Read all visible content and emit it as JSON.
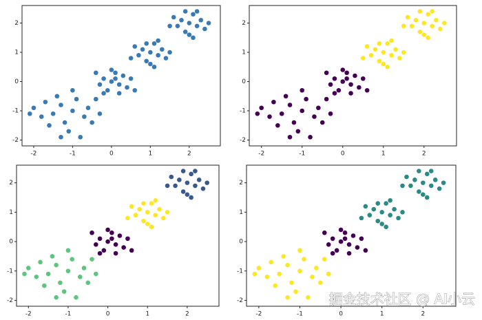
{
  "chart_data": [
    {
      "type": "scatter",
      "xlim": [
        -2.3,
        2.8
      ],
      "ylim": [
        -2.2,
        2.6
      ],
      "xticks": [
        -2,
        -1,
        0,
        1,
        2
      ],
      "yticks": [
        -2,
        -1,
        0,
        1,
        2
      ],
      "series": [
        {
          "color": "#3a7ab4",
          "x": [
            -1.0,
            -1.3,
            -0.7,
            -1.5,
            -0.9,
            -1.2,
            -0.6,
            -1.8,
            -2.1,
            -1.1,
            -0.5,
            -1.4,
            -0.8,
            -1.6,
            -0.3,
            -1.0,
            -2.0,
            -1.3,
            -0.4,
            -1.7,
            0,
            -0.2,
            0.2,
            0.1,
            -0.1,
            0.3,
            -0.3,
            0.4,
            0.0,
            -0.4,
            0.2,
            0.5,
            -0.2,
            0.1,
            0.6,
            1,
            0.8,
            1.2,
            1.1,
            0.9,
            1.3,
            0.7,
            1.4,
            1.0,
            0.6,
            1.2,
            0.5,
            1.5,
            0.9,
            1.1,
            2,
            1.8,
            2.2,
            2.1,
            1.9,
            2.3,
            1.7,
            2.4,
            2.0,
            1.6,
            2.2,
            2.5,
            1.5,
            1.9,
            2.1
          ],
          "y": [
            -1.0,
            -0.8,
            -1.2,
            -1.1,
            -0.6,
            -1.4,
            -0.9,
            -1.2,
            -1.1,
            -1.7,
            -1.4,
            -0.5,
            -1.9,
            -1.5,
            -1.1,
            -0.3,
            -0.9,
            -1.9,
            -0.6,
            -0.7,
            0,
            0.1,
            -0.1,
            0.3,
            -0.3,
            0.2,
            -0.1,
            -0.2,
            0.4,
            0.3,
            -0.4,
            0.1,
            -0.4,
            0.1,
            -0.3,
            1,
            1.1,
            0.9,
            1.3,
            0.7,
            1.1,
            0.9,
            0.8,
            0.6,
            1.2,
            1.4,
            0.8,
            1.0,
            1.3,
            0.5,
            2,
            2.1,
            1.9,
            2.3,
            1.7,
            2.1,
            1.9,
            1.8,
            1.6,
            2.2,
            2.4,
            2.0,
            1.9,
            2.4,
            1.5
          ]
        }
      ]
    },
    {
      "type": "scatter",
      "xlim": [
        -2.3,
        2.8
      ],
      "ylim": [
        -2.2,
        2.6
      ],
      "xticks": [
        -2,
        -1,
        0,
        1,
        2
      ],
      "yticks": [
        -2,
        -1,
        0,
        1,
        2
      ],
      "series": [
        {
          "color": "#440154",
          "x": [
            -1.0,
            -1.3,
            -0.7,
            -1.5,
            -0.9,
            -1.2,
            -0.6,
            -1.8,
            -2.1,
            -1.1,
            -0.5,
            -1.4,
            -0.8,
            -1.6,
            -0.3,
            -1.0,
            -2.0,
            -1.3,
            -0.4,
            -1.7,
            0,
            -0.2,
            0.2,
            0.1,
            -0.1,
            0.3,
            -0.3,
            0.4,
            0.0,
            -0.4,
            0.2,
            0.5,
            -0.2,
            0.1,
            0.6
          ],
          "y": [
            -1.0,
            -0.8,
            -1.2,
            -1.1,
            -0.6,
            -1.4,
            -0.9,
            -1.2,
            -1.1,
            -1.7,
            -1.4,
            -0.5,
            -1.9,
            -1.5,
            -1.1,
            -0.3,
            -0.9,
            -1.9,
            -0.6,
            -0.7,
            0,
            0.1,
            -0.1,
            0.3,
            -0.3,
            0.2,
            -0.1,
            -0.2,
            0.4,
            0.3,
            -0.4,
            0.1,
            -0.4,
            0.1,
            -0.3
          ]
        },
        {
          "color": "#fde725",
          "x": [
            1,
            0.8,
            1.2,
            1.1,
            0.9,
            1.3,
            0.7,
            1.4,
            1.0,
            0.6,
            1.2,
            0.5,
            1.5,
            0.9,
            1.1,
            2,
            1.8,
            2.2,
            2.1,
            1.9,
            2.3,
            1.7,
            2.4,
            2.0,
            1.6,
            2.2,
            2.5,
            1.5,
            1.9,
            2.1
          ],
          "y": [
            1,
            1.1,
            0.9,
            1.3,
            0.7,
            1.1,
            0.9,
            0.8,
            0.6,
            1.2,
            1.4,
            0.8,
            1.0,
            1.3,
            0.5,
            2,
            2.1,
            1.9,
            2.3,
            1.7,
            2.1,
            1.9,
            1.8,
            1.6,
            2.2,
            2.4,
            2.0,
            1.9,
            2.4,
            1.5
          ]
        }
      ]
    },
    {
      "type": "scatter",
      "xlim": [
        -2.3,
        2.8
      ],
      "ylim": [
        -2.2,
        2.6
      ],
      "xticks": [
        -2,
        -1,
        0,
        1,
        2
      ],
      "yticks": [
        -2,
        -1,
        0,
        1,
        2
      ],
      "series": [
        {
          "color": "#5ec57e",
          "x": [
            -1.0,
            -1.3,
            -0.7,
            -1.5,
            -0.9,
            -1.2,
            -0.6,
            -1.8,
            -2.1,
            -1.1,
            -0.5,
            -1.4,
            -0.8,
            -1.6,
            -0.3,
            -1.0,
            -2.0,
            -1.3,
            -0.4,
            -1.7
          ],
          "y": [
            -1.0,
            -0.8,
            -1.2,
            -1.1,
            -0.6,
            -1.4,
            -0.9,
            -1.2,
            -1.1,
            -1.7,
            -1.4,
            -0.5,
            -1.9,
            -1.5,
            -1.1,
            -0.3,
            -0.9,
            -1.9,
            -0.6,
            -0.7
          ]
        },
        {
          "color": "#440154",
          "x": [
            0,
            -0.2,
            0.2,
            0.1,
            -0.1,
            0.3,
            -0.3,
            0.4,
            0.0,
            -0.4,
            0.2,
            0.5,
            -0.2,
            0.1,
            0.6
          ],
          "y": [
            0,
            0.1,
            -0.1,
            0.3,
            -0.3,
            0.2,
            -0.1,
            -0.2,
            0.4,
            0.3,
            -0.4,
            0.1,
            -0.4,
            0.1,
            -0.3
          ]
        },
        {
          "color": "#fde725",
          "x": [
            1,
            0.8,
            1.2,
            1.1,
            0.9,
            1.3,
            0.7,
            1.4,
            1.0,
            0.6,
            1.2,
            0.5,
            1.5,
            0.9,
            1.1
          ],
          "y": [
            1,
            1.1,
            0.9,
            1.3,
            0.7,
            1.1,
            0.9,
            0.8,
            0.6,
            1.2,
            1.4,
            0.8,
            1.0,
            1.3,
            0.5
          ]
        },
        {
          "color": "#38598c",
          "x": [
            2,
            1.8,
            2.2,
            2.1,
            1.9,
            2.3,
            1.7,
            2.4,
            2.0,
            1.6,
            2.2,
            2.5,
            1.5,
            1.9,
            2.1
          ],
          "y": [
            2,
            2.1,
            1.9,
            2.3,
            1.7,
            2.1,
            1.9,
            1.8,
            1.6,
            2.2,
            2.4,
            2.0,
            1.9,
            2.4,
            1.5
          ]
        }
      ]
    },
    {
      "type": "scatter",
      "xlim": [
        -2.3,
        2.8
      ],
      "ylim": [
        -2.2,
        2.6
      ],
      "xticks": [
        -2,
        -1,
        0,
        1,
        2
      ],
      "yticks": [
        -2,
        -1,
        0,
        1,
        2
      ],
      "series": [
        {
          "color": "#fde725",
          "x": [
            -1.0,
            -1.3,
            -0.7,
            -1.5,
            -0.9,
            -1.2,
            -0.6,
            -1.8,
            -2.1,
            -1.1,
            -0.5,
            -1.4,
            -0.8,
            -1.6,
            -0.3,
            -1.0,
            -2.0,
            -1.3,
            -0.4,
            -1.7
          ],
          "y": [
            -1.0,
            -0.8,
            -1.2,
            -1.1,
            -0.6,
            -1.4,
            -0.9,
            -1.2,
            -1.1,
            -1.7,
            -1.4,
            -0.5,
            -1.9,
            -1.5,
            -1.1,
            -0.3,
            -0.9,
            -1.9,
            -0.6,
            -0.7
          ]
        },
        {
          "color": "#440154",
          "x": [
            0,
            -0.2,
            0.2,
            0.1,
            -0.1,
            0.3,
            -0.3,
            0.4,
            0.0,
            -0.4,
            0.2,
            0.5,
            -0.2,
            0.1,
            0.6
          ],
          "y": [
            0,
            0.1,
            -0.1,
            0.3,
            -0.3,
            0.2,
            -0.1,
            -0.2,
            0.4,
            0.3,
            -0.4,
            0.1,
            -0.4,
            0.1,
            -0.3
          ]
        },
        {
          "color": "#2a8a86",
          "x": [
            1,
            0.8,
            1.2,
            1.1,
            0.9,
            1.3,
            0.7,
            1.4,
            1.0,
            0.6,
            1.2,
            0.5,
            1.5,
            0.9,
            1.1,
            2,
            1.8,
            2.2,
            2.1,
            1.9,
            2.3,
            1.7,
            2.4,
            2.0,
            1.6,
            2.2,
            2.5,
            1.5,
            1.9,
            2.1
          ],
          "y": [
            1,
            1.1,
            0.9,
            1.3,
            0.7,
            1.1,
            0.9,
            0.8,
            0.6,
            1.2,
            1.4,
            0.8,
            1.0,
            1.3,
            0.5,
            2,
            2.1,
            1.9,
            2.3,
            1.7,
            2.1,
            1.9,
            1.8,
            1.6,
            2.2,
            2.4,
            2.0,
            1.9,
            2.4,
            1.5
          ]
        }
      ]
    }
  ],
  "watermark": "掘金技术社区 @ AI小云"
}
